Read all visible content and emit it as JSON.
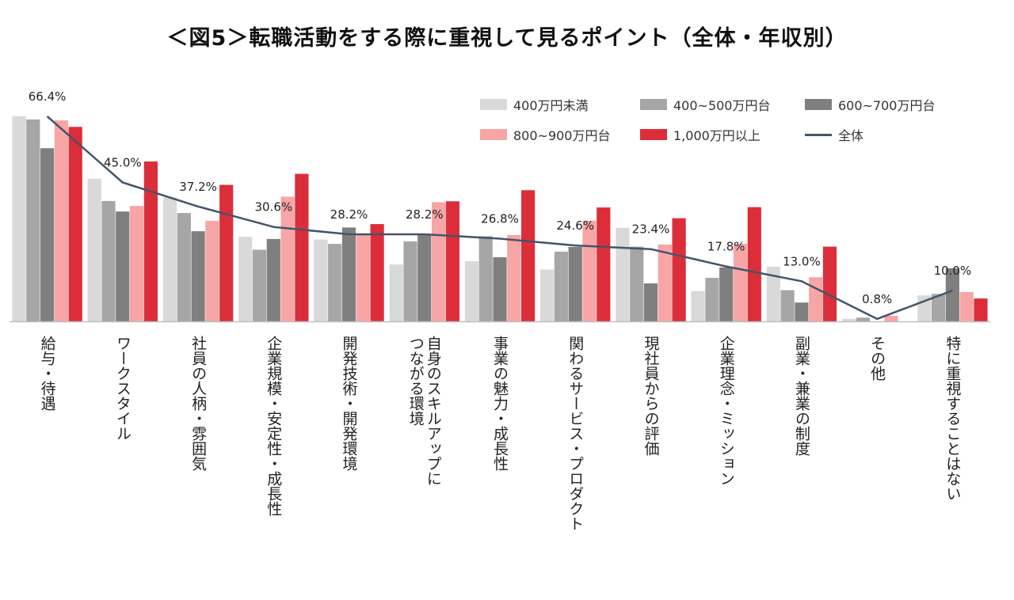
{
  "chart_data": {
    "type": "bar",
    "title": "＜図5＞転職活動をする際に重視して見るポイント（全体・年収別）",
    "categories": [
      "給与・待遇",
      "ワークスタイル",
      "社員の人柄・雰囲気",
      "企業規模・安定性・成長性",
      "開発技術・開発環境",
      "自身のスキルアップにつながる環境",
      "事業の魅力・成長性",
      "関わるサービス・プロダクト",
      "現社員からの評価",
      "企業理念・ミッション",
      "副業・兼業の制度",
      "その他",
      "特に重視することはない"
    ],
    "category_lines": [
      [
        "給与・待遇"
      ],
      [
        "ワークスタイル"
      ],
      [
        "社員の人柄・雰囲気"
      ],
      [
        "企業規模・安定性・成長性"
      ],
      [
        "開発技術・開発環境"
      ],
      [
        "自身のスキルアップに",
        "つながる環境"
      ],
      [
        "事業の魅力・成長性"
      ],
      [
        "関わるサービス・プロダクト"
      ],
      [
        "現社員からの評価"
      ],
      [
        "企業理念・ミッション"
      ],
      [
        "副業・兼業の制度"
      ],
      [
        "その他"
      ],
      [
        "特に重視することはない"
      ]
    ],
    "series": [
      {
        "name": "400万円未満",
        "color": "#d9d9d9",
        "values": [
          66.5,
          46.2,
          40.1,
          27.4,
          26.5,
          18.4,
          19.5,
          16.8,
          30.3,
          9.8,
          17.7,
          0.8,
          8.4
        ]
      },
      {
        "name": "400~500万円台",
        "color": "#a6a6a6",
        "values": [
          65.4,
          39.0,
          35.1,
          23.2,
          25.1,
          25.9,
          27.6,
          22.6,
          24.2,
          14.1,
          10.1,
          1.2,
          8.9
        ]
      },
      {
        "name": "600~700万円台",
        "color": "#7f7f7f",
        "values": [
          56.1,
          35.6,
          29.2,
          26.7,
          30.4,
          28.0,
          20.8,
          24.1,
          12.3,
          17.5,
          6.1,
          0.0,
          17.2
        ]
      },
      {
        "name": "800~900万円台",
        "color": "#f8a5a5",
        "values": [
          65.1,
          37.4,
          32.6,
          40.4,
          28.3,
          38.6,
          28.0,
          32.6,
          24.9,
          25.1,
          14.3,
          1.8,
          9.5
        ]
      },
      {
        "name": "1,000万円以上",
        "color": "#dc2e3a",
        "values": [
          63.0,
          51.8,
          44.2,
          47.8,
          31.5,
          38.9,
          42.5,
          36.9,
          33.4,
          37.0,
          24.2,
          0.0,
          7.4
        ]
      }
    ],
    "line_series": {
      "name": "全体",
      "color": "#44546a",
      "values": [
        66.4,
        45.0,
        37.2,
        30.6,
        28.2,
        28.2,
        26.8,
        24.6,
        23.4,
        17.8,
        13.0,
        0.8,
        10.0
      ]
    },
    "data_labels": [
      "66.4%",
      "45.0%",
      "37.2%",
      "30.6%",
      "28.2%",
      "28.2%",
      "26.8%",
      "24.6%",
      "23.4%",
      "17.8%",
      "13.0%",
      "0.8%",
      "10.0%"
    ],
    "ylim": [
      0,
      70
    ],
    "xlabel": "",
    "ylabel": "",
    "legend_position": "top-right"
  }
}
